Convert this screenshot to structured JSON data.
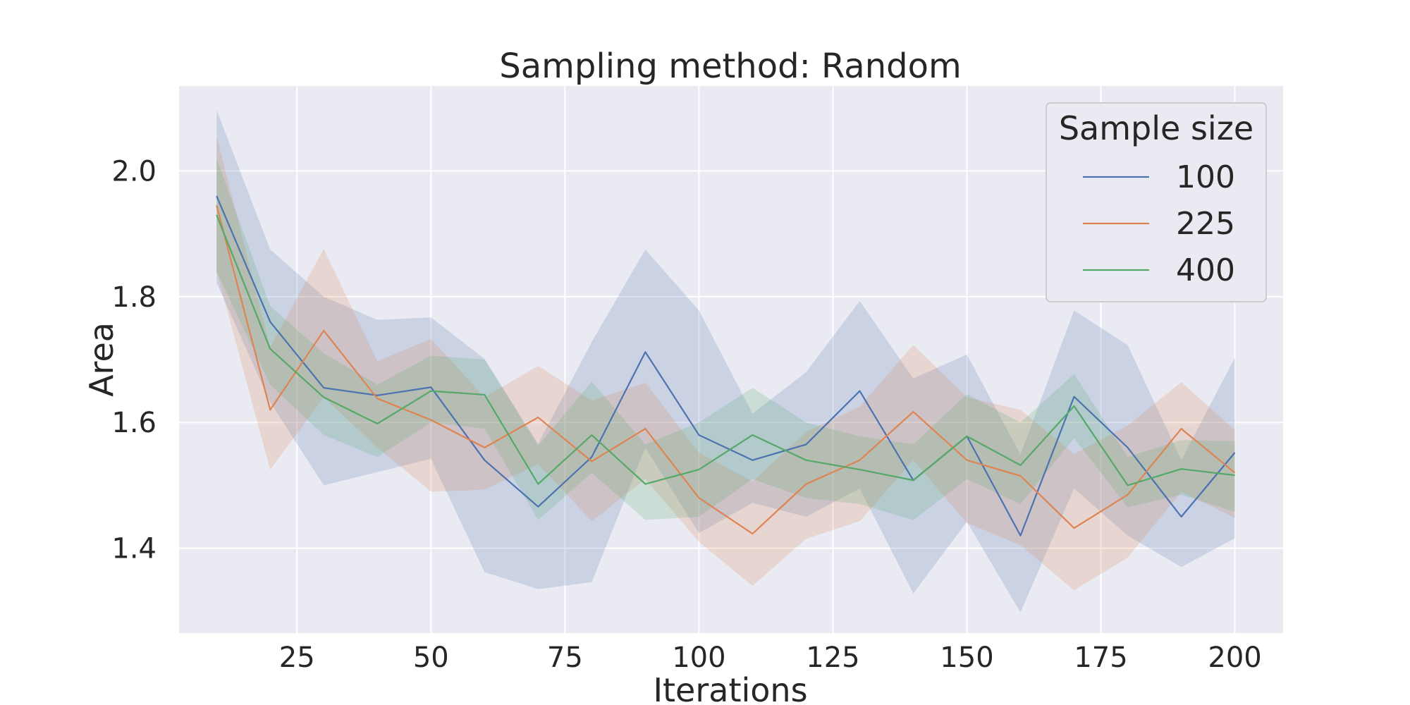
{
  "chart_data": {
    "type": "line",
    "title": "Sampling method: Random",
    "xlabel": "Iterations",
    "ylabel": "Area",
    "xlim": [
      3,
      209
    ],
    "ylim": [
      1.265,
      2.135
    ],
    "xticks": [
      25,
      50,
      75,
      100,
      125,
      150,
      175,
      200
    ],
    "yticks": [
      1.4,
      1.6,
      1.8,
      2.0
    ],
    "ytick_labels": [
      "1.4",
      "1.6",
      "1.8",
      "2.0"
    ],
    "grid": true,
    "background": "#eaeaf2",
    "legend": {
      "title": "Sample size",
      "placement": "top-right"
    },
    "x": [
      10,
      20,
      30,
      40,
      50,
      60,
      70,
      80,
      90,
      100,
      110,
      120,
      130,
      140,
      150,
      160,
      170,
      180,
      190,
      200
    ],
    "series": [
      {
        "name": "100",
        "color": "#4c72b0",
        "values": [
          1.96,
          1.76,
          1.655,
          1.643,
          1.656,
          1.54,
          1.466,
          1.545,
          1.712,
          1.58,
          1.54,
          1.565,
          1.65,
          1.508,
          1.578,
          1.42,
          1.641,
          1.56,
          1.45,
          1.552
        ],
        "ci_low": [
          1.822,
          1.632,
          1.5,
          1.521,
          1.542,
          1.362,
          1.335,
          1.346,
          1.56,
          1.424,
          1.472,
          1.45,
          1.495,
          1.328,
          1.442,
          1.298,
          1.495,
          1.42,
          1.37,
          1.416
        ],
        "ci_high": [
          2.097,
          1.875,
          1.8,
          1.763,
          1.767,
          1.701,
          1.566,
          1.728,
          1.875,
          1.778,
          1.614,
          1.68,
          1.793,
          1.67,
          1.708,
          1.549,
          1.778,
          1.723,
          1.54,
          1.703
        ]
      },
      {
        "name": "225",
        "color": "#dd8452",
        "values": [
          1.945,
          1.62,
          1.746,
          1.638,
          1.604,
          1.56,
          1.608,
          1.538,
          1.59,
          1.48,
          1.423,
          1.502,
          1.54,
          1.617,
          1.54,
          1.515,
          1.432,
          1.485,
          1.59,
          1.52
        ],
        "ci_low": [
          1.84,
          1.525,
          1.64,
          1.56,
          1.49,
          1.493,
          1.534,
          1.443,
          1.51,
          1.41,
          1.34,
          1.415,
          1.443,
          1.54,
          1.44,
          1.405,
          1.333,
          1.385,
          1.49,
          1.448
        ],
        "ci_high": [
          2.055,
          1.72,
          1.876,
          1.697,
          1.733,
          1.64,
          1.69,
          1.635,
          1.663,
          1.552,
          1.506,
          1.585,
          1.625,
          1.723,
          1.64,
          1.62,
          1.55,
          1.595,
          1.664,
          1.588
        ]
      },
      {
        "name": "400",
        "color": "#55a868",
        "values": [
          1.93,
          1.717,
          1.64,
          1.598,
          1.65,
          1.644,
          1.502,
          1.58,
          1.502,
          1.525,
          1.58,
          1.54,
          1.525,
          1.508,
          1.578,
          1.532,
          1.626,
          1.5,
          1.526,
          1.516
        ],
        "ci_low": [
          1.84,
          1.66,
          1.58,
          1.545,
          1.6,
          1.59,
          1.445,
          1.52,
          1.445,
          1.45,
          1.51,
          1.48,
          1.47,
          1.445,
          1.51,
          1.47,
          1.575,
          1.465,
          1.485,
          1.458
        ],
        "ci_high": [
          2.02,
          1.785,
          1.71,
          1.66,
          1.706,
          1.7,
          1.563,
          1.665,
          1.565,
          1.6,
          1.655,
          1.6,
          1.578,
          1.565,
          1.645,
          1.6,
          1.677,
          1.545,
          1.572,
          1.57
        ]
      }
    ]
  }
}
